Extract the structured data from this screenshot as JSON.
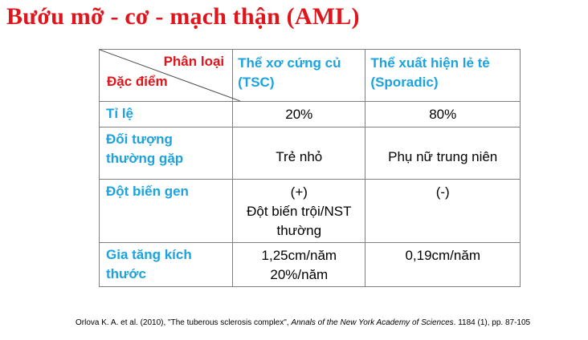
{
  "title": "Bướu mỡ - cơ - mạch thận (AML)",
  "table": {
    "corner_top": "Phân loại",
    "corner_bottom": "Đặc điểm",
    "columns": [
      {
        "line1": "Thể xơ cứng củ",
        "line2": "(TSC)"
      },
      {
        "line1": "Thể xuất hiện lẻ tẻ",
        "line2": "(Sporadic)"
      }
    ],
    "rows": [
      {
        "label_lines": [
          "Tỉ lệ"
        ],
        "tsc_lines": [
          "20%"
        ],
        "sporadic_lines": [
          "80%"
        ]
      },
      {
        "label_lines": [
          "Đối tượng",
          "thường gặp"
        ],
        "tsc_lines": [
          "Trẻ nhỏ"
        ],
        "sporadic_lines": [
          "Phụ nữ trung niên"
        ]
      },
      {
        "label_lines": [
          "Đột biến gen"
        ],
        "tsc_lines": [
          "(+)",
          "Đột biến trội/NST",
          "thường"
        ],
        "sporadic_lines": [
          "(-)"
        ]
      },
      {
        "label_lines": [
          "Gia tăng kích",
          "thước"
        ],
        "tsc_lines": [
          "1,25cm/năm",
          "20%/năm"
        ],
        "sporadic_lines": [
          "0,19cm/năm"
        ]
      }
    ]
  },
  "citation": {
    "prefix": "Orlova K. A. et al. (2010), \"The tuberous sclerosis complex\", ",
    "journal": "Annals of the New York Academy of Sciences",
    "suffix": ". 1184 (1), pp. 87-105"
  },
  "colors": {
    "title_red": "#e0141b",
    "header_blue": "#1aa3e0",
    "border_gray": "#7f7f7f"
  }
}
